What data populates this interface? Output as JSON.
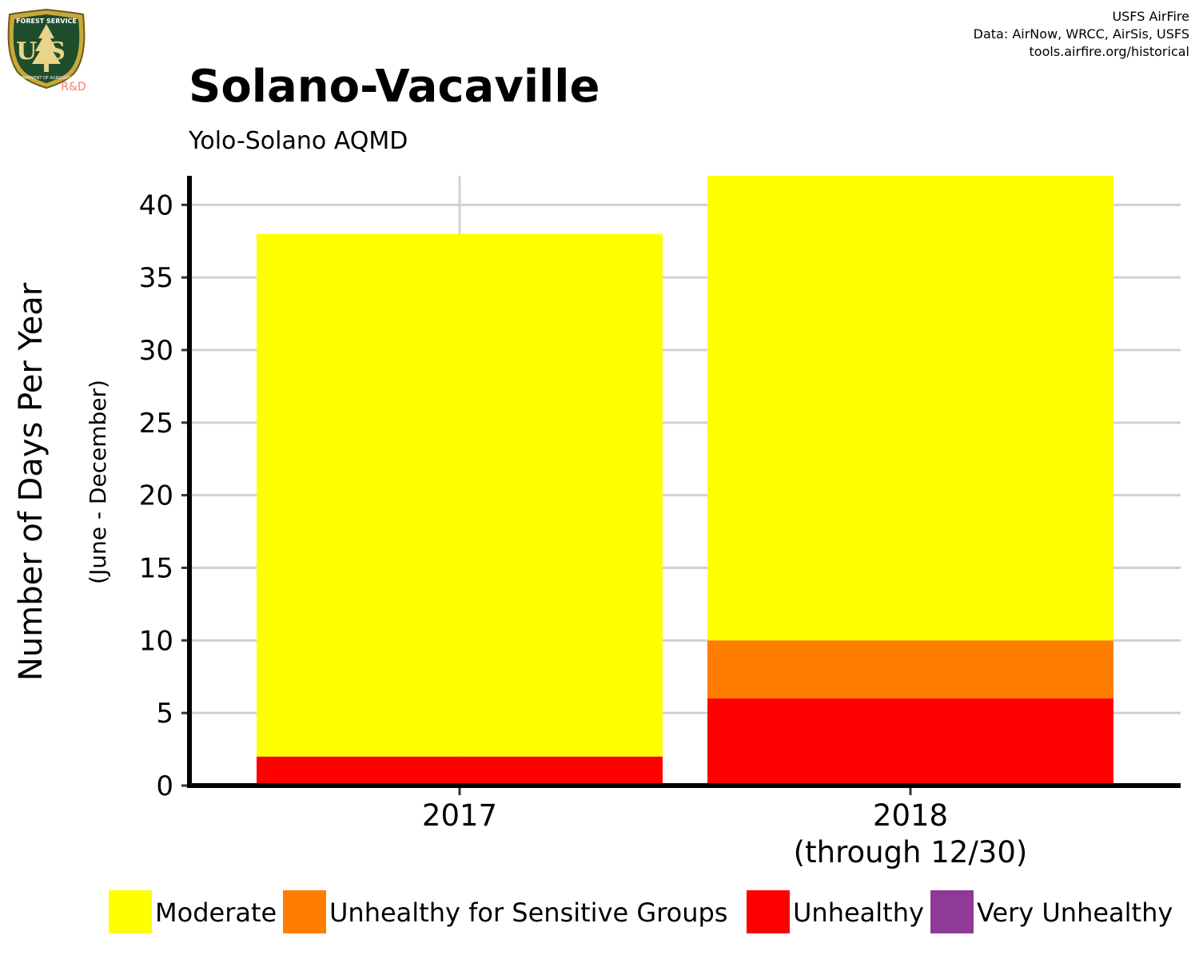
{
  "logo": {
    "top_text": "FOREST SERVICE",
    "center_text": "US",
    "bottom_text": "DEPARTMENT OF AGRICULTURE",
    "badge_text": "R&D"
  },
  "credits": {
    "line1": "USFS AirFire",
    "line2": "Data: AirNow, WRCC, AirSis, USFS",
    "line3": "tools.airfire.org/historical"
  },
  "chart_data": {
    "type": "bar",
    "stacked": true,
    "title": "Solano-Vacaville",
    "subtitle": "Yolo-Solano AQMD",
    "ylabel": "Number of Days Per Year",
    "ylabel_sub": "(June - December)",
    "xlabel": "",
    "categories": [
      [
        "2017"
      ],
      [
        "2018",
        "(through 12/30)"
      ]
    ],
    "ylim": [
      0,
      42
    ],
    "yticks": [
      0,
      5,
      10,
      15,
      20,
      25,
      30,
      35,
      40
    ],
    "grid": true,
    "legend_position": "bottom",
    "series": [
      {
        "name": "Very Unhealthy",
        "color": "#8E3A96",
        "values": [
          0,
          0
        ]
      },
      {
        "name": "Unhealthy",
        "color": "#FF0000",
        "values": [
          2,
          6
        ]
      },
      {
        "name": "Unhealthy for Sensitive Groups",
        "color": "#FF7E00",
        "values": [
          0,
          4
        ]
      },
      {
        "name": "Moderate",
        "color": "#FFFF00",
        "values": [
          36,
          32
        ]
      }
    ],
    "legend_order": [
      "Moderate",
      "Unhealthy for Sensitive Groups",
      "Unhealthy",
      "Very Unhealthy"
    ]
  }
}
